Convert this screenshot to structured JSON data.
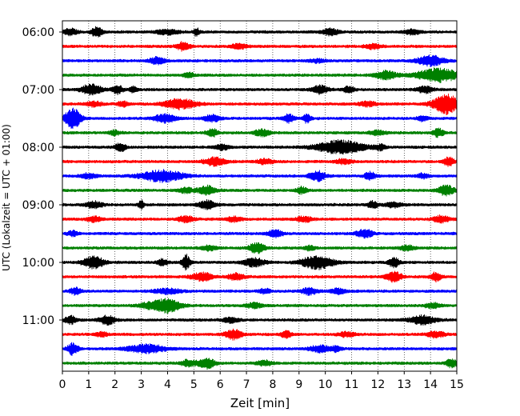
{
  "chart_data": {
    "type": "line",
    "title": "",
    "xlabel": "Zeit  [min]",
    "ylabel": "UTC (Lokalzeit = UTC + 01:00)",
    "xlim": [
      0,
      15
    ],
    "x_ticks": [
      0,
      1,
      2,
      3,
      4,
      5,
      6,
      7,
      8,
      9,
      10,
      11,
      12,
      13,
      14,
      15
    ],
    "grid": "vertical dotted",
    "trace_interval_min": 15,
    "trace_colors": [
      "#000000",
      "#ff0000",
      "#0000ff",
      "#008000"
    ],
    "y_tick_labels": [
      "06:00",
      "07:00",
      "08:00",
      "09:00",
      "10:00",
      "11:00"
    ],
    "traces": [
      {
        "start": "06:00",
        "color": "#000000"
      },
      {
        "start": "06:15",
        "color": "#ff0000"
      },
      {
        "start": "06:30",
        "color": "#0000ff"
      },
      {
        "start": "06:45",
        "color": "#008000"
      },
      {
        "start": "07:00",
        "color": "#000000"
      },
      {
        "start": "07:15",
        "color": "#ff0000"
      },
      {
        "start": "07:30",
        "color": "#0000ff"
      },
      {
        "start": "07:45",
        "color": "#008000"
      },
      {
        "start": "08:00",
        "color": "#000000"
      },
      {
        "start": "08:15",
        "color": "#ff0000"
      },
      {
        "start": "08:30",
        "color": "#0000ff"
      },
      {
        "start": "08:45",
        "color": "#008000"
      },
      {
        "start": "09:00",
        "color": "#000000"
      },
      {
        "start": "09:15",
        "color": "#ff0000"
      },
      {
        "start": "09:30",
        "color": "#0000ff"
      },
      {
        "start": "09:45",
        "color": "#008000"
      },
      {
        "start": "10:00",
        "color": "#000000"
      },
      {
        "start": "10:15",
        "color": "#ff0000"
      },
      {
        "start": "10:30",
        "color": "#0000ff"
      },
      {
        "start": "10:45",
        "color": "#008000"
      },
      {
        "start": "11:00",
        "color": "#000000"
      },
      {
        "start": "11:15",
        "color": "#ff0000"
      },
      {
        "start": "11:30",
        "color": "#0000ff"
      },
      {
        "start": "11:45",
        "color": "#008000"
      }
    ]
  }
}
